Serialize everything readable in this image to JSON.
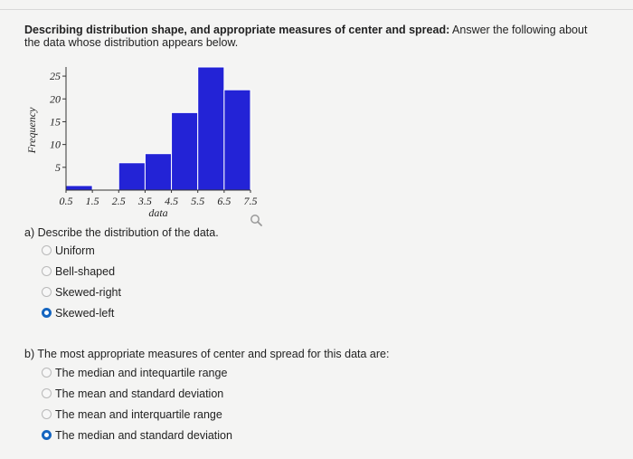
{
  "question": {
    "title_bold": "Describing distribution shape, and appropriate measures of center and spread:",
    "title_rest": " Answer the following about the data whose distribution appears below."
  },
  "chart_data": {
    "type": "bar",
    "xlabel": "data",
    "ylabel": "Frequency",
    "x_ticks": [
      "0.5",
      "1.5",
      "2.5",
      "3.5",
      "4.5",
      "5.5",
      "6.5",
      "7.5"
    ],
    "y_ticks": [
      5,
      10,
      15,
      20,
      25
    ],
    "bin_edges": [
      0.5,
      1.5,
      2.5,
      3.5,
      4.5,
      5.5,
      6.5,
      7.5
    ],
    "values": [
      1,
      0,
      6,
      8,
      17,
      27,
      22
    ],
    "ylim": [
      0,
      27
    ],
    "bar_color": "#2323d6",
    "grid": false
  },
  "part_a": {
    "prompt": "a) Describe the distribution of the data.",
    "options": [
      {
        "label": "Uniform",
        "selected": false
      },
      {
        "label": "Bell-shaped",
        "selected": false
      },
      {
        "label": "Skewed-right",
        "selected": false
      },
      {
        "label": "Skewed-left",
        "selected": true
      }
    ]
  },
  "part_b": {
    "prompt": "b) The most appropriate measures of center and spread for this data are:",
    "options": [
      {
        "label": "The median and intequartile range",
        "selected": false
      },
      {
        "label": "The mean and standard deviation",
        "selected": false
      },
      {
        "label": "The mean and interquartile range",
        "selected": false
      },
      {
        "label": "The median and standard deviation",
        "selected": true
      }
    ]
  },
  "icons": {
    "zoom": "magnifier-icon"
  },
  "colors": {
    "accent": "#1565c0",
    "bar": "#2323d6"
  }
}
